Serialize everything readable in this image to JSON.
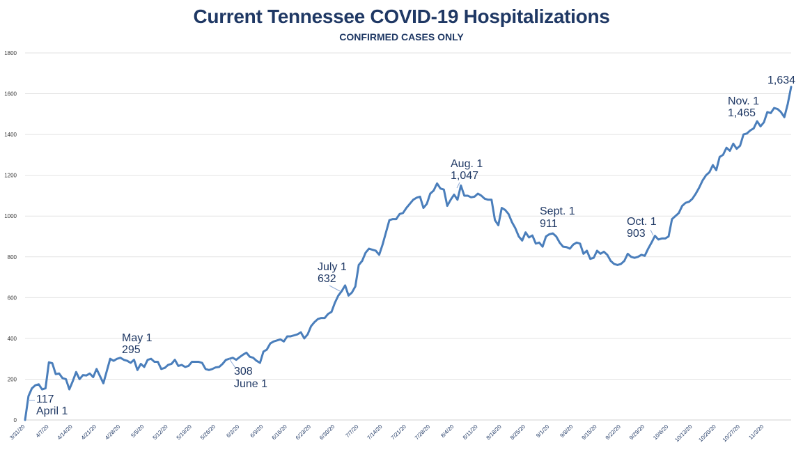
{
  "chart_data": {
    "type": "line",
    "title": "Current Tennessee COVID-19 Hospitalizations",
    "subtitle": "CONFIRMED CASES ONLY",
    "xlabel": "",
    "ylabel": "",
    "ylim": [
      0,
      1800
    ],
    "yticks": [
      0,
      200,
      400,
      600,
      800,
      1000,
      1200,
      1400,
      1600,
      1800
    ],
    "grid": true,
    "legend": "none",
    "line_color": "#4A7EBB",
    "x_tick_labels": [
      "3/31/20",
      "4/7/20",
      "4/14/20",
      "4/21/20",
      "4/28/20",
      "5/5/20",
      "5/12/20",
      "5/19/20",
      "5/26/20",
      "6/2/20",
      "6/9/20",
      "6/16/20",
      "6/23/20",
      "6/30/20",
      "7/7/20",
      "7/14/20",
      "7/21/20",
      "7/28/20",
      "8/4/20",
      "8/11/20",
      "8/18/20",
      "8/25/20",
      "9/1/20",
      "9/8/20",
      "9/15/20",
      "9/22/20",
      "9/29/20",
      "10/6/20",
      "10/13/20",
      "10/20/20",
      "10/27/20",
      "11/3/20"
    ],
    "start_date": "3/31/20",
    "values": [
      0,
      117,
      155,
      170,
      175,
      150,
      155,
      283,
      278,
      225,
      228,
      205,
      200,
      150,
      190,
      235,
      200,
      220,
      218,
      228,
      210,
      250,
      215,
      180,
      240,
      300,
      290,
      300,
      305,
      295,
      290,
      280,
      295,
      245,
      275,
      260,
      295,
      300,
      285,
      285,
      250,
      255,
      270,
      275,
      295,
      265,
      270,
      260,
      265,
      285,
      285,
      285,
      280,
      250,
      245,
      250,
      258,
      260,
      275,
      295,
      300,
      305,
      295,
      308,
      320,
      330,
      310,
      305,
      290,
      280,
      335,
      345,
      375,
      385,
      390,
      395,
      385,
      410,
      410,
      415,
      420,
      430,
      400,
      420,
      460,
      480,
      495,
      500,
      500,
      520,
      530,
      575,
      610,
      632,
      660,
      610,
      625,
      655,
      760,
      780,
      820,
      840,
      835,
      830,
      810,
      860,
      920,
      980,
      985,
      985,
      1010,
      1015,
      1040,
      1060,
      1080,
      1090,
      1095,
      1040,
      1060,
      1110,
      1125,
      1160,
      1135,
      1130,
      1050,
      1080,
      1105,
      1080,
      1150,
      1100,
      1100,
      1092,
      1095,
      1110,
      1100,
      1085,
      1080,
      1080,
      980,
      955,
      1040,
      1030,
      1010,
      970,
      940,
      900,
      880,
      920,
      895,
      905,
      865,
      870,
      850,
      900,
      911,
      915,
      900,
      870,
      850,
      848,
      840,
      860,
      870,
      865,
      815,
      830,
      790,
      795,
      830,
      815,
      825,
      810,
      780,
      765,
      760,
      765,
      780,
      815,
      800,
      795,
      800,
      810,
      805,
      840,
      870,
      903,
      885,
      890,
      890,
      900,
      985,
      1000,
      1015,
      1050,
      1065,
      1070,
      1085,
      1110,
      1140,
      1175,
      1200,
      1215,
      1250,
      1225,
      1290,
      1300,
      1335,
      1320,
      1355,
      1330,
      1345,
      1400,
      1405,
      1420,
      1430,
      1465,
      1440,
      1460,
      1510,
      1505,
      1530,
      1525,
      1510,
      1485,
      1550,
      1634
    ],
    "annotations": [
      {
        "label": "April 1",
        "value_text": "117",
        "date": "4/1/20",
        "value": 117
      },
      {
        "label": "May 1",
        "value_text": "295",
        "date": "5/1/20",
        "value": 295
      },
      {
        "label": "June 1",
        "value_text": "308",
        "date": "6/1/20",
        "value": 308
      },
      {
        "label": "July 1",
        "value_text": "632",
        "date": "7/1/20",
        "value": 632
      },
      {
        "label": "Aug. 1",
        "value_text": "1,047",
        "date": "8/1/20",
        "value": 1047
      },
      {
        "label": "Sept. 1",
        "value_text": "911",
        "date": "9/1/20",
        "value": 911
      },
      {
        "label": "Oct. 1",
        "value_text": "903",
        "date": "10/1/20",
        "value": 903
      },
      {
        "label": "Nov. 1",
        "value_text": "1,465",
        "date": "11/1/20",
        "value": 1465
      },
      {
        "label": "",
        "value_text": "1,634",
        "date": "11/9/20",
        "value": 1634
      }
    ]
  }
}
